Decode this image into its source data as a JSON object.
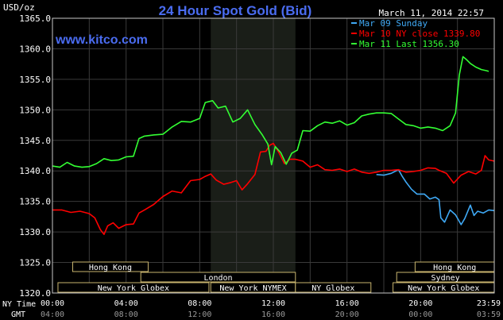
{
  "chart_data": {
    "type": "line",
    "title": "24 Hour Spot Gold (Bid)",
    "watermark": "www.kitco.com",
    "timestamp": "March 11, 2014 22:57",
    "ylabel": "USD/oz",
    "ylim": [
      1320,
      1365
    ],
    "yticks": [
      "1365.0",
      "1360.0",
      "1355.0",
      "1350.0",
      "1345.0",
      "1340.0",
      "1335.0",
      "1330.0",
      "1325.0",
      "1320.0"
    ],
    "ytick_values": [
      1365,
      1360,
      1355,
      1350,
      1345,
      1340,
      1335,
      1330,
      1325,
      1320
    ],
    "xlim": [
      0,
      24
    ],
    "xaxis_ny_label": "NY Time",
    "xaxis_gmt_label": "GMT",
    "xticks_ny": [
      "00:00",
      "04:00",
      "08:00",
      "12:00",
      "16:00",
      "20:00",
      "23:59"
    ],
    "xticks_gmt": [
      "04:00",
      "08:00",
      "12:00",
      "16:00",
      "20:00",
      "00:00",
      "03:59"
    ],
    "xtick_values": [
      0,
      4,
      8,
      12,
      16,
      20,
      24
    ],
    "grid": true,
    "legend_position": "top-right",
    "background": "#000000",
    "highlight_band": [
      8.6,
      13.2
    ],
    "series": [
      {
        "name": "Mar 09 Sunday",
        "color": "#3fa9f5",
        "points": [
          [
            17.6,
            1339.4
          ],
          [
            18.0,
            1339.3
          ],
          [
            18.4,
            1339.6
          ],
          [
            18.8,
            1340.2
          ],
          [
            19.0,
            1339.1
          ],
          [
            19.2,
            1338.2
          ],
          [
            19.5,
            1337.0
          ],
          [
            19.8,
            1336.2
          ],
          [
            20.2,
            1336.2
          ],
          [
            20.5,
            1335.4
          ],
          [
            20.8,
            1335.7
          ],
          [
            21.0,
            1335.3
          ],
          [
            21.1,
            1332.3
          ],
          [
            21.3,
            1331.6
          ],
          [
            21.6,
            1333.6
          ],
          [
            21.9,
            1332.8
          ],
          [
            22.2,
            1331.2
          ],
          [
            22.4,
            1332.2
          ],
          [
            22.7,
            1334.4
          ],
          [
            22.9,
            1332.7
          ],
          [
            23.1,
            1333.4
          ],
          [
            23.4,
            1333.1
          ],
          [
            23.7,
            1333.6
          ],
          [
            24.0,
            1333.5
          ]
        ]
      },
      {
        "name": "Mar 10 NY close",
        "value_label": "1339.80",
        "color": "#ff0000",
        "points": [
          [
            0.0,
            1333.6
          ],
          [
            0.5,
            1333.6
          ],
          [
            1.0,
            1333.2
          ],
          [
            1.5,
            1333.4
          ],
          [
            2.0,
            1333.0
          ],
          [
            2.3,
            1332.3
          ],
          [
            2.6,
            1330.4
          ],
          [
            2.8,
            1329.6
          ],
          [
            3.0,
            1331.0
          ],
          [
            3.3,
            1331.5
          ],
          [
            3.6,
            1330.6
          ],
          [
            4.0,
            1331.2
          ],
          [
            4.4,
            1331.3
          ],
          [
            4.7,
            1333.1
          ],
          [
            5.0,
            1333.6
          ],
          [
            5.5,
            1334.5
          ],
          [
            6.0,
            1335.8
          ],
          [
            6.5,
            1336.7
          ],
          [
            7.0,
            1336.4
          ],
          [
            7.5,
            1338.4
          ],
          [
            8.0,
            1338.6
          ],
          [
            8.3,
            1339.1
          ],
          [
            8.6,
            1339.5
          ],
          [
            8.9,
            1338.5
          ],
          [
            9.3,
            1337.8
          ],
          [
            9.7,
            1338.1
          ],
          [
            10.0,
            1338.4
          ],
          [
            10.3,
            1336.9
          ],
          [
            10.6,
            1337.9
          ],
          [
            11.0,
            1339.4
          ],
          [
            11.3,
            1343.1
          ],
          [
            11.6,
            1343.2
          ],
          [
            11.8,
            1344.2
          ],
          [
            12.0,
            1344.5
          ],
          [
            12.3,
            1343.0
          ],
          [
            12.6,
            1341.2
          ],
          [
            12.9,
            1341.9
          ],
          [
            13.2,
            1341.9
          ],
          [
            13.6,
            1341.6
          ],
          [
            14.0,
            1340.6
          ],
          [
            14.4,
            1341.0
          ],
          [
            14.8,
            1340.2
          ],
          [
            15.2,
            1340.1
          ],
          [
            15.6,
            1340.3
          ],
          [
            16.0,
            1339.9
          ],
          [
            16.4,
            1340.3
          ],
          [
            16.8,
            1339.8
          ],
          [
            17.2,
            1339.6
          ],
          [
            17.6,
            1339.8
          ],
          [
            18.0,
            1340.1
          ],
          [
            18.4,
            1340.1
          ],
          [
            18.8,
            1340.2
          ],
          [
            19.2,
            1339.8
          ],
          [
            19.6,
            1339.9
          ],
          [
            20.0,
            1340.1
          ],
          [
            20.4,
            1340.5
          ],
          [
            20.8,
            1340.4
          ],
          [
            21.0,
            1340.1
          ],
          [
            21.4,
            1339.6
          ],
          [
            21.8,
            1338.0
          ],
          [
            22.2,
            1339.3
          ],
          [
            22.6,
            1339.9
          ],
          [
            23.0,
            1339.5
          ],
          [
            23.3,
            1340.1
          ],
          [
            23.5,
            1342.5
          ],
          [
            23.7,
            1341.8
          ],
          [
            24.0,
            1341.6
          ]
        ]
      },
      {
        "name": "Mar 11 Last",
        "value_label": "1356.30",
        "color": "#33ff33",
        "points": [
          [
            0.0,
            1340.8
          ],
          [
            0.4,
            1340.6
          ],
          [
            0.8,
            1341.4
          ],
          [
            1.2,
            1340.8
          ],
          [
            1.6,
            1340.6
          ],
          [
            2.0,
            1340.7
          ],
          [
            2.4,
            1341.2
          ],
          [
            2.8,
            1342.0
          ],
          [
            3.2,
            1341.7
          ],
          [
            3.6,
            1341.8
          ],
          [
            4.0,
            1342.3
          ],
          [
            4.4,
            1342.4
          ],
          [
            4.7,
            1345.3
          ],
          [
            5.0,
            1345.7
          ],
          [
            5.5,
            1345.9
          ],
          [
            6.0,
            1346.0
          ],
          [
            6.5,
            1347.2
          ],
          [
            7.0,
            1348.1
          ],
          [
            7.5,
            1348.0
          ],
          [
            8.0,
            1348.6
          ],
          [
            8.3,
            1351.2
          ],
          [
            8.7,
            1351.5
          ],
          [
            9.0,
            1350.3
          ],
          [
            9.4,
            1350.6
          ],
          [
            9.8,
            1348.0
          ],
          [
            10.2,
            1348.6
          ],
          [
            10.6,
            1350.0
          ],
          [
            11.0,
            1347.6
          ],
          [
            11.4,
            1345.9
          ],
          [
            11.7,
            1344.4
          ],
          [
            11.9,
            1341.0
          ],
          [
            12.1,
            1344.0
          ],
          [
            12.4,
            1343.0
          ],
          [
            12.7,
            1341.1
          ],
          [
            13.0,
            1342.9
          ],
          [
            13.3,
            1343.4
          ],
          [
            13.6,
            1346.6
          ],
          [
            14.0,
            1346.5
          ],
          [
            14.4,
            1347.4
          ],
          [
            14.8,
            1348.0
          ],
          [
            15.2,
            1347.8
          ],
          [
            15.6,
            1348.2
          ],
          [
            16.0,
            1347.5
          ],
          [
            16.4,
            1347.9
          ],
          [
            16.8,
            1349.0
          ],
          [
            17.2,
            1349.3
          ],
          [
            17.6,
            1349.5
          ],
          [
            18.0,
            1349.5
          ],
          [
            18.4,
            1349.4
          ],
          [
            18.8,
            1348.5
          ],
          [
            19.2,
            1347.6
          ],
          [
            19.6,
            1347.4
          ],
          [
            20.0,
            1347.0
          ],
          [
            20.4,
            1347.2
          ],
          [
            20.8,
            1347.0
          ],
          [
            21.2,
            1346.6
          ],
          [
            21.6,
            1347.4
          ],
          [
            21.9,
            1349.5
          ],
          [
            22.1,
            1355.7
          ],
          [
            22.3,
            1358.7
          ],
          [
            22.5,
            1358.2
          ],
          [
            22.7,
            1357.6
          ],
          [
            23.0,
            1357.0
          ],
          [
            23.3,
            1356.6
          ],
          [
            23.6,
            1356.4
          ],
          [
            23.7,
            1356.3
          ]
        ]
      }
    ],
    "sessions": [
      {
        "label": "Hong Kong",
        "rows": [
          {
            "row": 0,
            "start": 0.0,
            "end": 0.0
          },
          {
            "row": 0,
            "start": 1.1,
            "end": 5.2
          },
          {
            "row": 0,
            "start": 19.7,
            "end": 24.0
          }
        ]
      },
      {
        "label": "London",
        "rows": [
          {
            "row": 1,
            "start": 0.0,
            "end": 0.0
          },
          {
            "row": 1,
            "start": 4.8,
            "end": 13.2
          }
        ]
      },
      {
        "label": "Sydney",
        "rows": [
          {
            "row": 1,
            "start": 18.7,
            "end": 24.0
          }
        ]
      },
      {
        "label": "New York Globex",
        "rows": [
          {
            "row": 2,
            "start": 0.3,
            "end": 8.5
          },
          {
            "row": 2,
            "start": 18.5,
            "end": 24.0
          }
        ]
      },
      {
        "label": "New York NYMEX",
        "rows": [
          {
            "row": 2,
            "start": 8.6,
            "end": 13.2
          }
        ]
      },
      {
        "label": "NY Globex",
        "rows": [
          {
            "row": 2,
            "start": 13.2,
            "end": 17.3
          }
        ]
      }
    ],
    "colors": {
      "axis_text": "#ffffff",
      "grid": "#3a3a3a",
      "frame": "#c8c8c8",
      "session_border": "#c8b46e",
      "title": "#4a6cf0",
      "watermark": "#4a6cf0"
    }
  }
}
